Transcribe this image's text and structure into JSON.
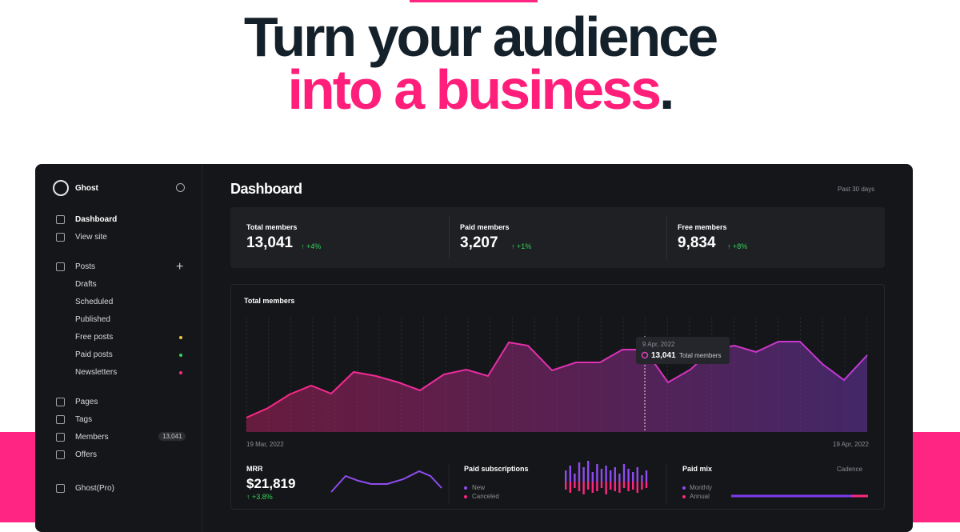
{
  "headline": {
    "line1": "Turn your audience",
    "line2": "into a business",
    "period": "."
  },
  "sidebar": {
    "brand": "Ghost",
    "nav": [
      "Dashboard",
      "View site",
      "Posts",
      "Drafts",
      "Scheduled",
      "Published",
      "Free posts",
      "Paid posts",
      "Newsletters",
      "Pages",
      "Tags",
      "Members",
      "Offers",
      "Ghost(Pro)"
    ],
    "members_badge": "13,041"
  },
  "dashboard": {
    "title": "Dashboard",
    "range": "Past 30 days",
    "stats": [
      {
        "label": "Total members",
        "value": "13,041",
        "delta": "+4%"
      },
      {
        "label": "Paid members",
        "value": "3,207",
        "delta": "+1%"
      },
      {
        "label": "Free members",
        "value": "9,834",
        "delta": "+8%"
      }
    ],
    "chart": {
      "title": "Total members",
      "tooltip_date": "9 Apr, 2022",
      "tooltip_value": "13,041",
      "tooltip_label": "Total members",
      "start": "19 Mar, 2022",
      "end": "19 Apr, 2022"
    },
    "mrr": {
      "label": "MRR",
      "value": "$21,819",
      "delta": "+3.8%"
    },
    "paid_subscriptions": {
      "title": "Paid subscriptions",
      "legend": [
        "New",
        "Canceled"
      ]
    },
    "paid_mix": {
      "title": "Paid mix",
      "control": "Cadence",
      "legend": [
        "Monthly",
        "Annual"
      ]
    }
  }
}
